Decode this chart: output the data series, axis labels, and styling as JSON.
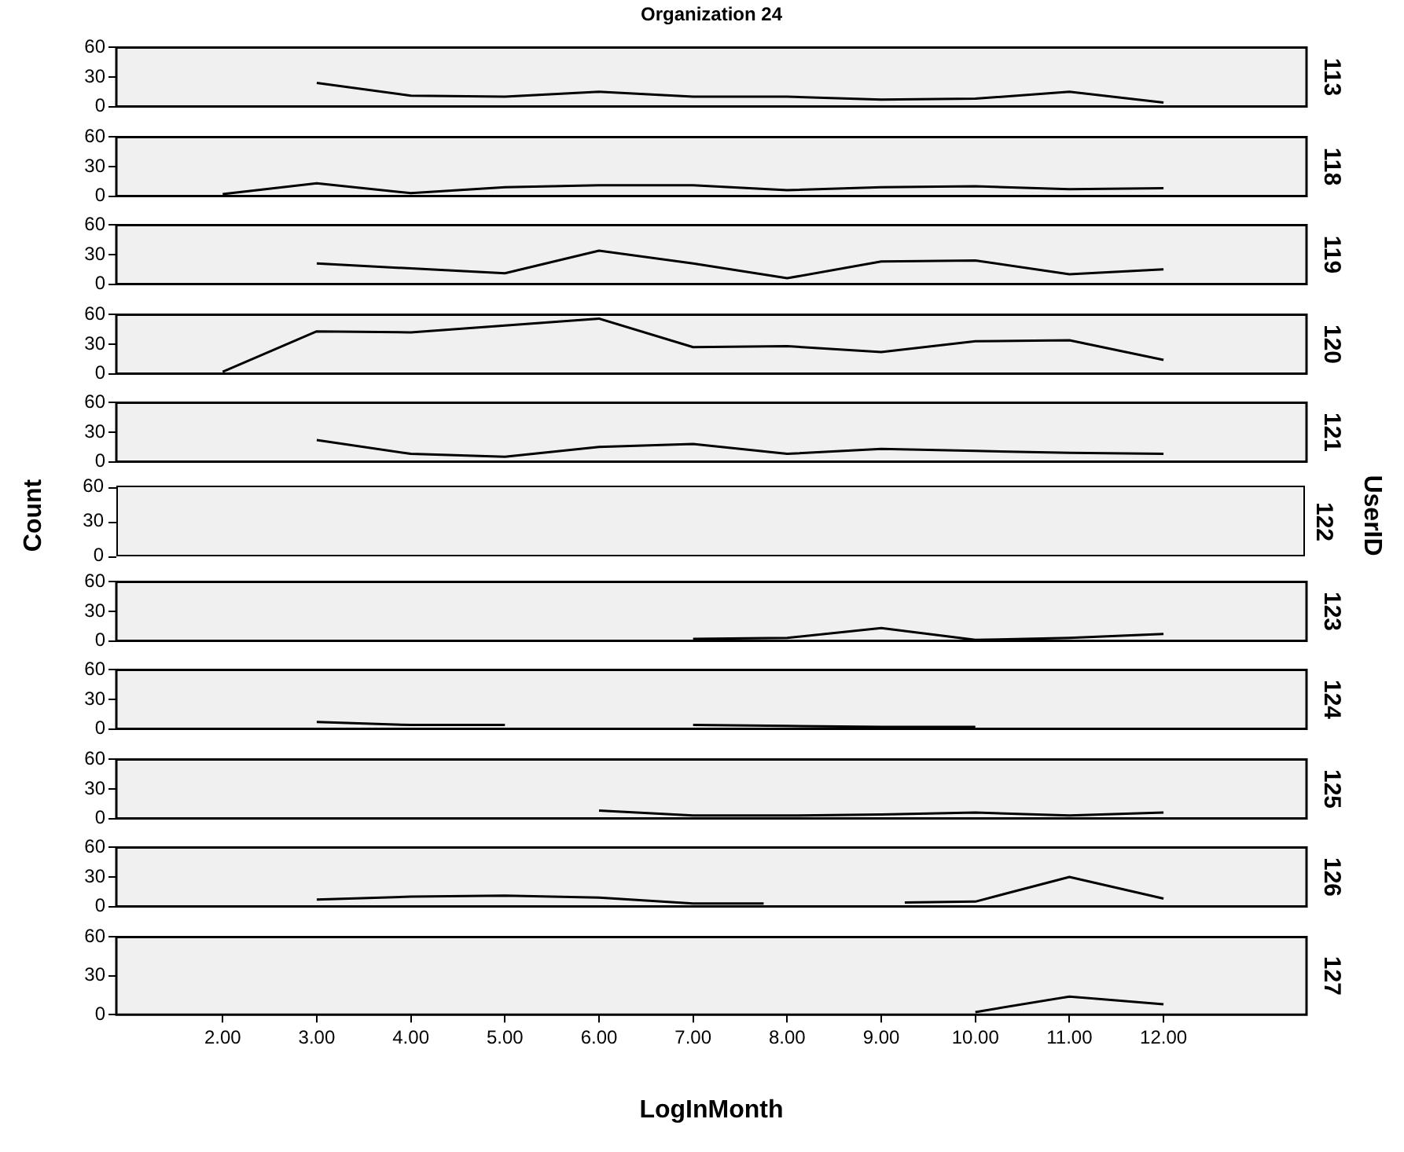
{
  "chart_data": [
    {
      "type": "line",
      "title": "Organization 24",
      "xlim": [
        0.87,
        13.52
      ],
      "ylim": [
        0,
        60
      ],
      "yticks": [
        0,
        30,
        60
      ],
      "tick_labels": "y",
      "grid": false,
      "legend": false,
      "marker": "none",
      "series": [
        {
          "name": "113",
          "color": "#000000",
          "x": [
            3,
            4,
            5,
            6,
            7,
            8,
            9,
            10,
            11,
            12
          ],
          "values": [
            24,
            11,
            10,
            15,
            10,
            10,
            7,
            8,
            15,
            4
          ]
        }
      ]
    },
    {
      "type": "line",
      "xlim": [
        0.87,
        13.52
      ],
      "ylim": [
        0,
        60
      ],
      "yticks": [
        0,
        30,
        60
      ],
      "tick_labels": "y",
      "grid": false,
      "legend": false,
      "marker": "none",
      "series": [
        {
          "name": "118",
          "color": "#000000",
          "x": [
            2,
            3,
            4,
            5,
            6,
            7,
            8,
            9,
            10,
            11,
            12
          ],
          "values": [
            2,
            13,
            3,
            9,
            11,
            11,
            6,
            9,
            10,
            7,
            8
          ]
        }
      ]
    },
    {
      "type": "line",
      "xlim": [
        0.87,
        13.52
      ],
      "ylim": [
        0,
        60
      ],
      "yticks": [
        0,
        30,
        60
      ],
      "tick_labels": "y",
      "grid": false,
      "legend": false,
      "marker": "none",
      "series": [
        {
          "name": "119",
          "color": "#000000",
          "x": [
            3,
            4,
            5,
            6,
            7,
            8,
            9,
            10,
            11,
            12
          ],
          "values": [
            21,
            16,
            11,
            34,
            21,
            6,
            23,
            24,
            10,
            15
          ]
        }
      ]
    },
    {
      "type": "line",
      "xlim": [
        0.87,
        13.52
      ],
      "ylim": [
        0,
        60
      ],
      "yticks": [
        0,
        30,
        60
      ],
      "tick_labels": "y",
      "grid": false,
      "legend": false,
      "marker": "none",
      "series": [
        {
          "name": "120",
          "color": "#000000",
          "x": [
            2,
            3,
            4,
            5,
            6,
            7,
            8,
            9,
            10,
            11,
            12
          ],
          "values": [
            2,
            43,
            42,
            49,
            56,
            27,
            28,
            22,
            33,
            34,
            14
          ]
        }
      ]
    },
    {
      "type": "line",
      "xlim": [
        0.87,
        13.52
      ],
      "ylim": [
        0,
        60
      ],
      "yticks": [
        0,
        30,
        60
      ],
      "tick_labels": "y",
      "grid": false,
      "legend": false,
      "marker": "none",
      "series": [
        {
          "name": "121",
          "color": "#000000",
          "x": [
            3,
            4,
            5,
            6,
            7,
            8,
            9,
            10,
            11,
            12
          ],
          "values": [
            22,
            8,
            5,
            15,
            18,
            8,
            13,
            11,
            9,
            8
          ]
        }
      ]
    },
    {
      "type": "other",
      "ylabel": "Count",
      "y2label": "UserID",
      "annotations": [
        "60",
        "30",
        "0",
        "122"
      ]
    },
    {
      "type": "line",
      "xlim": [
        0.87,
        13.52
      ],
      "ylim": [
        0,
        60
      ],
      "yticks": [
        0,
        30,
        60
      ],
      "tick_labels": "y",
      "grid": false,
      "legend": false,
      "marker": "none",
      "series": [
        {
          "name": "123",
          "color": "#000000",
          "x": [
            7,
            8,
            9,
            10,
            11,
            12
          ],
          "values": [
            2,
            3,
            13,
            1,
            3,
            7
          ]
        }
      ]
    },
    {
      "type": "line",
      "xlim": [
        0.87,
        13.52
      ],
      "ylim": [
        0,
        60
      ],
      "yticks": [
        0,
        30,
        60
      ],
      "tick_labels": "y",
      "grid": false,
      "legend": false,
      "marker": "none",
      "series": [
        {
          "name": "124",
          "color": "#000000",
          "x": [
            3,
            4,
            5,
            6,
            7,
            8,
            9,
            10
          ],
          "values": [
            7,
            4,
            4,
            null,
            4,
            3,
            2,
            2
          ]
        }
      ]
    },
    {
      "type": "line",
      "xlim": [
        0.87,
        13.52
      ],
      "ylim": [
        0,
        60
      ],
      "yticks": [
        0,
        30,
        60
      ],
      "tick_labels": "y",
      "grid": false,
      "legend": false,
      "marker": "none",
      "series": [
        {
          "name": "125",
          "color": "#000000",
          "x": [
            6,
            7,
            8,
            9,
            10,
            11,
            12
          ],
          "values": [
            8,
            3,
            3,
            4,
            6,
            3,
            6
          ]
        }
      ]
    },
    {
      "type": "line",
      "xlim": [
        0.87,
        13.52
      ],
      "ylim": [
        0,
        60
      ],
      "yticks": [
        0,
        30,
        60
      ],
      "tick_labels": "y",
      "grid": false,
      "legend": false,
      "marker": "none",
      "series": [
        {
          "name": "126",
          "color": "#000000",
          "x": [
            3,
            4,
            5,
            6,
            7,
            7.75,
            8.5,
            9.25,
            10,
            11,
            12
          ],
          "values": [
            7,
            10,
            11,
            9,
            3,
            3,
            null,
            4,
            5,
            30,
            8
          ]
        }
      ]
    },
    {
      "type": "line",
      "xlabel": "LogInMonth",
      "xlim": [
        0.87,
        13.52
      ],
      "ylim": [
        0,
        60
      ],
      "yticks": [
        0,
        30,
        60
      ],
      "xticks": [
        {
          "value": 2,
          "label": "2.00"
        },
        {
          "value": 3,
          "label": "3.00"
        },
        {
          "value": 4,
          "label": "4.00"
        },
        {
          "value": 5,
          "label": "5.00"
        },
        {
          "value": 6,
          "label": "6.00"
        },
        {
          "value": 7,
          "label": "7.00"
        },
        {
          "value": 8,
          "label": "8.00"
        },
        {
          "value": 9,
          "label": "9.00"
        },
        {
          "value": 10,
          "label": "10.00"
        },
        {
          "value": 11,
          "label": "11.00"
        },
        {
          "value": 12,
          "label": "12.00"
        }
      ],
      "grid": false,
      "legend": false,
      "marker": "none",
      "series": [
        {
          "name": "127",
          "color": "#000000",
          "x": [
            10,
            11,
            12
          ],
          "values": [
            2,
            14,
            8
          ]
        }
      ]
    }
  ]
}
